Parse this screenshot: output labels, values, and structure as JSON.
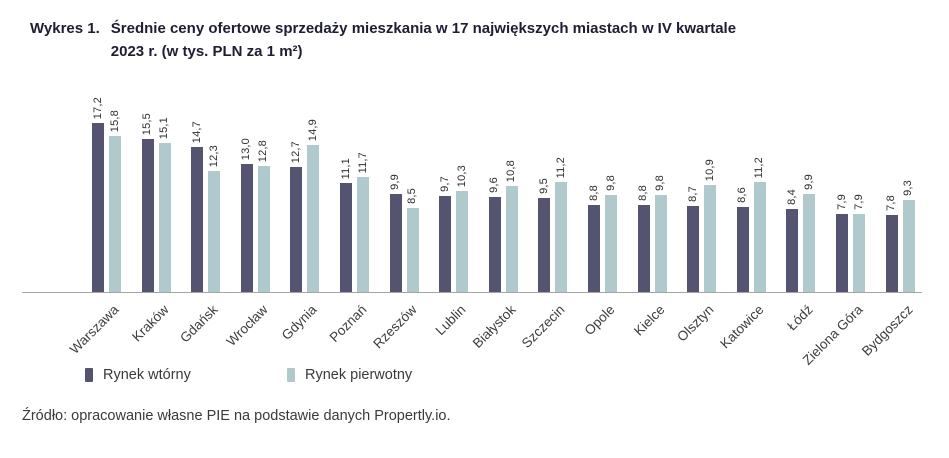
{
  "title": {
    "prefix": "Wykres 1.",
    "line1": "Średnie ceny ofertowe sprzedaży mieszkania w 17 największych miastach w IV kwartale",
    "line2": "2023 r. (w tys. PLN za 1 m²)"
  },
  "legend": [
    {
      "label": "Rynek wtórny",
      "color": "#545470"
    },
    {
      "label": "Rynek pierwotny",
      "color": "#b0c9cc"
    }
  ],
  "source": "Źródło: opracowanie własne PIE na podstawie danych Propertly.io.",
  "chart_data": {
    "type": "bar",
    "title": "Średnie ceny ofertowe sprzedaży mieszkania w 17 największych miastach w IV kwartale 2023 r. (w tys. PLN za 1 m²)",
    "categories": [
      "Warszawa",
      "Kraków",
      "Gdańsk",
      "Wrocław",
      "Gdynia",
      "Poznań",
      "Rzeszów",
      "Lublin",
      "Białystok",
      "Szczecin",
      "Opole",
      "Kielce",
      "Olsztyn",
      "Katowice",
      "Łódź",
      "Zielona Góra",
      "Bydgoszcz"
    ],
    "series": [
      {
        "name": "Rynek wtórny",
        "color": "#545470",
        "values": [
          17.2,
          15.5,
          14.7,
          13.0,
          12.7,
          11.1,
          9.9,
          9.7,
          9.6,
          9.5,
          8.8,
          8.8,
          8.7,
          8.6,
          8.4,
          7.9,
          7.8
        ]
      },
      {
        "name": "Rynek pierwotny",
        "color": "#b0c9cc",
        "values": [
          15.8,
          15.1,
          12.3,
          12.8,
          14.9,
          11.7,
          8.5,
          10.3,
          10.8,
          11.2,
          9.8,
          9.8,
          10.9,
          11.2,
          9.9,
          7.9,
          9.3
        ]
      }
    ],
    "value_labels": true,
    "value_label_rotation": 90,
    "category_label_rotation": 45,
    "decimal_separator": ",",
    "ylabel": "tys. PLN za 1 m²",
    "ylim": [
      0,
      18
    ],
    "grid": false,
    "legend_position": "bottom-left"
  }
}
